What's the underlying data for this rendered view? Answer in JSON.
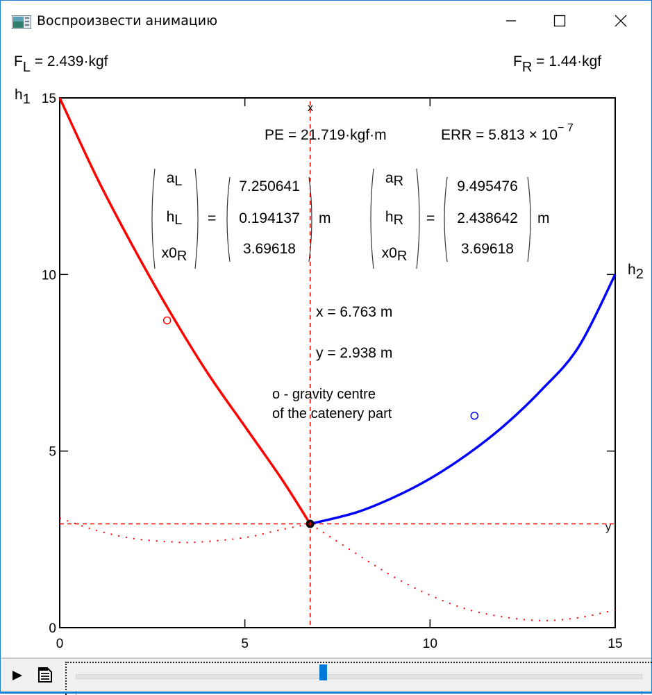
{
  "window": {
    "title": "Воспроизвести анимацию",
    "controls": {
      "minimize": "minimize-icon",
      "maximize": "maximize-icon",
      "close": "close-icon"
    }
  },
  "forces": {
    "left": {
      "symbol": "F",
      "sub": "L",
      "value": "= 2.439·kgf"
    },
    "right": {
      "symbol": "F",
      "sub": "R",
      "value": "= 1.44·kgf"
    }
  },
  "energy": {
    "pe": "PE = 21.719·kgf·m",
    "err_label": "ERR = 5.813 × 10",
    "err_exp": "− 7"
  },
  "left_matrix": {
    "vars": [
      {
        "b": "a",
        "s": "L"
      },
      {
        "b": "h",
        "s": "L"
      },
      {
        "b": "x0",
        "s": "R"
      }
    ],
    "values": [
      "7.250641",
      "0.194137",
      "3.69618"
    ],
    "unit": "m",
    "eq": "="
  },
  "right_matrix": {
    "vars": [
      {
        "b": "a",
        "s": "R"
      },
      {
        "b": "h",
        "s": "R"
      },
      {
        "b": "x0",
        "s": "R"
      }
    ],
    "values": [
      "9.495476",
      "2.438642",
      "3.69618"
    ],
    "unit": "m",
    "eq": "="
  },
  "point": {
    "x": "x = 6.763 m",
    "y": "y = 2.938 m"
  },
  "legend": {
    "line1": "o - gravity centre",
    "line2": "of the catenery part"
  },
  "axis_labels": {
    "h1_base": "h",
    "h1_sub": "1",
    "h2_base": "h",
    "h2_sub": "2",
    "x_marker": "x",
    "y_marker": "y"
  },
  "player": {
    "play": "play-icon",
    "options": "document-icon",
    "slider_position_pct": 44
  },
  "colors": {
    "left": "#ff0000",
    "right": "#0000ff",
    "accent": "#0078d7"
  },
  "chart_data": {
    "type": "line",
    "title": "",
    "xlabel": "",
    "ylabel": "h1 / h2",
    "xlim": [
      0,
      15
    ],
    "ylim": [
      0,
      15
    ],
    "xticks": [
      "0",
      "5",
      "10",
      "15"
    ],
    "yticks": [
      "0",
      "5",
      "10",
      "15"
    ],
    "series": [
      {
        "name": "left catenary",
        "color": "#ff0000",
        "style": "solid",
        "points": [
          [
            0,
            15
          ],
          [
            1,
            12.75
          ],
          [
            2,
            10.75
          ],
          [
            3,
            8.9
          ],
          [
            4,
            7.2
          ],
          [
            5,
            5.7
          ],
          [
            6,
            4.2
          ],
          [
            6.763,
            2.938
          ]
        ]
      },
      {
        "name": "right catenary",
        "color": "#0000ff",
        "style": "solid",
        "points": [
          [
            6.763,
            2.938
          ],
          [
            8,
            3.26
          ],
          [
            9,
            3.68
          ],
          [
            10,
            4.22
          ],
          [
            11,
            4.9
          ],
          [
            12,
            5.72
          ],
          [
            13,
            6.72
          ],
          [
            14,
            7.93
          ],
          [
            15,
            10.0
          ]
        ]
      },
      {
        "name": "left catenary extension",
        "color": "#ff0000",
        "style": "dotted",
        "points": [
          [
            0,
            3.1
          ],
          [
            1,
            2.75
          ],
          [
            2,
            2.52
          ],
          [
            3,
            2.43
          ],
          [
            3.7,
            2.42
          ],
          [
            5,
            2.55
          ],
          [
            6,
            2.78
          ],
          [
            6.763,
            2.938
          ]
        ]
      },
      {
        "name": "right catenary extension",
        "color": "#ff0000",
        "style": "dotted",
        "points": [
          [
            6.763,
            2.938
          ],
          [
            8,
            2.1
          ],
          [
            9,
            1.45
          ],
          [
            10,
            0.92
          ],
          [
            11,
            0.52
          ],
          [
            12,
            0.3
          ],
          [
            13,
            0.2
          ],
          [
            14,
            0.28
          ],
          [
            15,
            0.5
          ]
        ]
      },
      {
        "name": "gravity centre left",
        "color": "#ff0000",
        "style": "marker-circle",
        "points": [
          [
            2.9,
            8.7
          ]
        ]
      },
      {
        "name": "gravity centre right",
        "color": "#0000ff",
        "style": "marker-circle",
        "points": [
          [
            11.2,
            6.0
          ]
        ]
      },
      {
        "name": "joint point",
        "color": "#000000",
        "style": "marker-dot",
        "points": [
          [
            6.763,
            2.938
          ]
        ]
      }
    ],
    "guides": {
      "vertical_x": 6.763,
      "horizontal_y": 2.938
    }
  }
}
